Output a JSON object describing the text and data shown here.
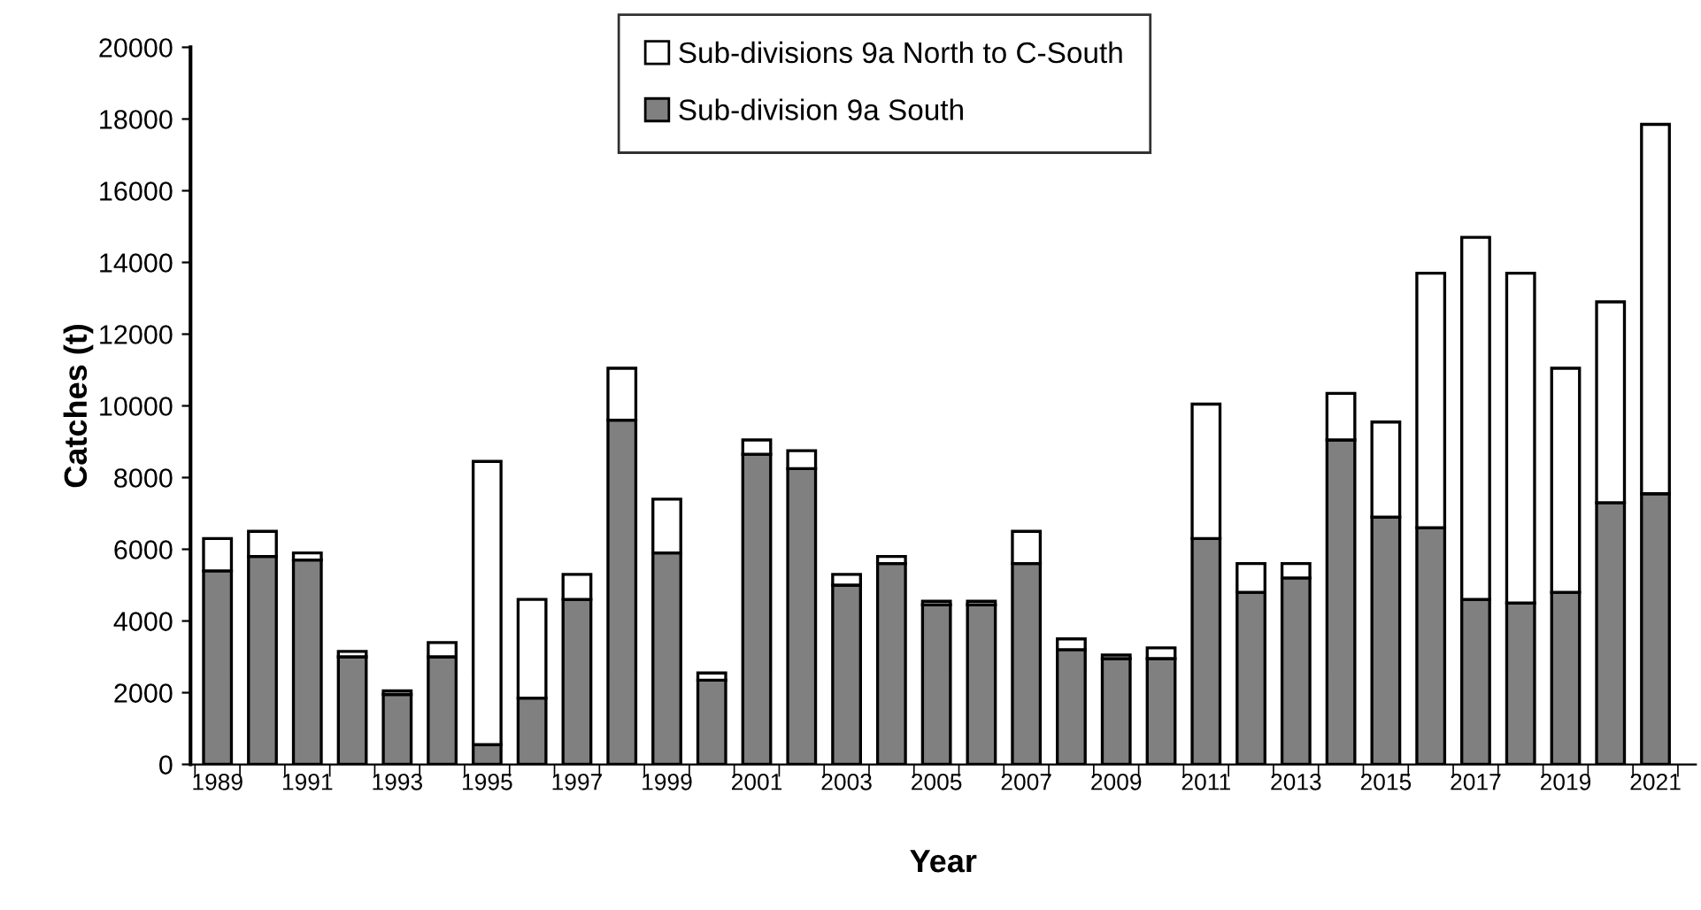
{
  "chart_data": {
    "type": "bar",
    "stacked": true,
    "xlabel": "Year",
    "ylabel": "Catches (t)",
    "categories": [
      "1989",
      null,
      "1991",
      null,
      "1993",
      null,
      "1995",
      null,
      "1997",
      null,
      "1999",
      null,
      "2001",
      null,
      "2003",
      null,
      "2005",
      null,
      "2007",
      null,
      "2009",
      null,
      "2011",
      null,
      "2013",
      null,
      "2015",
      null,
      "2017",
      null,
      "2019",
      null,
      "2021"
    ],
    "series": [
      {
        "name": "Sub-division 9a South",
        "color": "#808080",
        "values": [
          5400,
          5800,
          5700,
          3000,
          1950,
          3000,
          550,
          1850,
          4600,
          9600,
          5900,
          2350,
          8650,
          8250,
          5000,
          5600,
          4450,
          4450,
          5600,
          3200,
          2950,
          2950,
          6300,
          4800,
          5200,
          9050,
          6900,
          6600,
          4600,
          4500,
          4800,
          7300,
          7550
        ]
      },
      {
        "name": "Sub-divisions 9a North to C-South",
        "color": "#ffffff",
        "values": [
          900,
          700,
          200,
          150,
          100,
          400,
          7900,
          2750,
          700,
          1450,
          1500,
          200,
          400,
          500,
          300,
          200,
          100,
          100,
          900,
          300,
          100,
          300,
          3750,
          800,
          400,
          1300,
          2650,
          7100,
          10100,
          9200,
          6250,
          5600,
          10300
        ]
      }
    ],
    "ylim": [
      0,
      20000
    ],
    "yticks": [
      0,
      2000,
      4000,
      6000,
      8000,
      10000,
      12000,
      14000,
      16000,
      18000,
      20000
    ],
    "grid": false,
    "legend": "top"
  }
}
